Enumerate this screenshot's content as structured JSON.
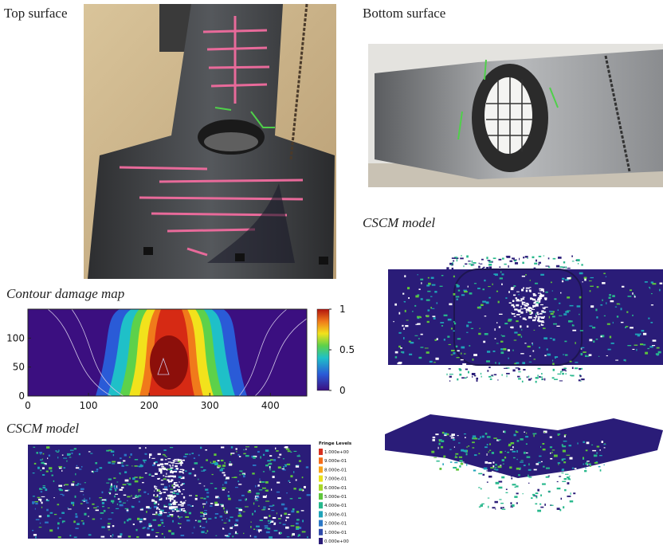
{
  "top_photo": {
    "label": "Top surface"
  },
  "bottom_photo": {
    "label": "Bottom surface"
  },
  "cscm_right": {
    "label": "CSCM model"
  },
  "contour": {
    "title": "Contour damage map",
    "xlim": [
      0,
      460
    ],
    "ylim": [
      0,
      150
    ],
    "xticks": [
      0,
      100,
      200,
      300,
      400
    ],
    "yticks": [
      0,
      50,
      100
    ],
    "colorbar": {
      "lim": [
        0,
        1
      ],
      "ticks": [
        0,
        0.5,
        1
      ]
    }
  },
  "cscm_left": {
    "label": "CSCM model",
    "fringe_title": "Fringe Levels",
    "fringe_levels": [
      "1.000e+00",
      "9.000e-01",
      "8.000e-01",
      "7.000e-01",
      "6.000e-01",
      "5.000e-01",
      "4.000e-01",
      "3.000e-01",
      "2.000e-01",
      "1.000e-01",
      "0.000e+00"
    ],
    "fringe_colors": [
      "#d7301f",
      "#f46d1a",
      "#f9a51b",
      "#e9e21d",
      "#a8d72a",
      "#5fc63b",
      "#27b88c",
      "#1fa3b8",
      "#2b78c6",
      "#2f4aaa",
      "#2a1c78"
    ]
  }
}
